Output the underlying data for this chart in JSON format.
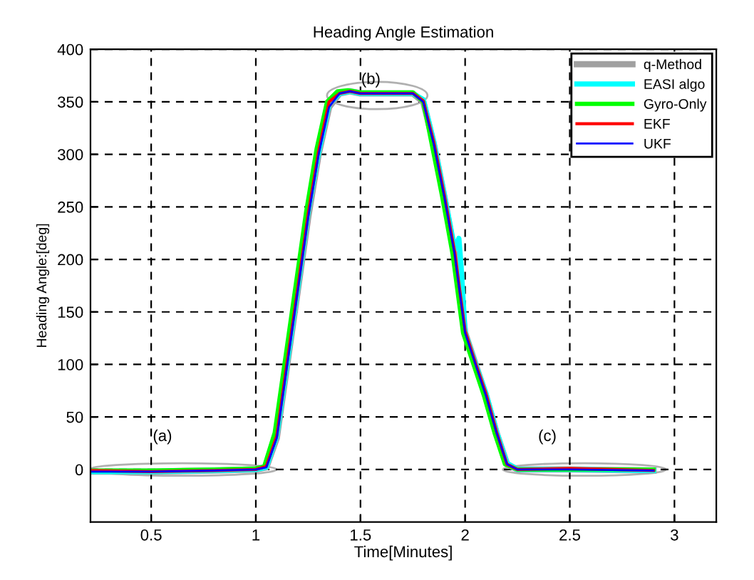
{
  "chart_data": {
    "type": "line",
    "title": "Heading Angle Estimation",
    "xlabel": "Time[Minutes]",
    "ylabel": "Heading Angle:[deg]",
    "xlim": [
      0.21,
      3.2
    ],
    "ylim": [
      -50,
      400
    ],
    "xticks": [
      0.5,
      1,
      1.5,
      2,
      2.5,
      3
    ],
    "yticks": [
      0,
      50,
      100,
      150,
      200,
      250,
      300,
      350,
      400
    ],
    "grid": true,
    "legend": "top right",
    "line_style": "solid",
    "marker": "none",
    "annotations": [
      "(a)",
      "(b)",
      "(c)"
    ],
    "series": [
      {
        "name": "q-Method",
        "color": "#a0a0a0",
        "x": [
          0.21,
          0.5,
          0.8,
          1.0,
          1.05,
          1.1,
          1.15,
          1.2,
          1.25,
          1.3,
          1.35,
          1.4,
          1.45,
          1.5,
          1.6,
          1.75,
          1.8,
          1.85,
          1.9,
          1.95,
          2.0,
          2.05,
          2.1,
          2.15,
          2.2,
          2.25,
          2.5,
          2.9
        ],
        "values": [
          -2,
          -2,
          -1,
          0,
          2,
          30,
          100,
          170,
          240,
          300,
          345,
          358,
          360,
          358,
          358,
          358,
          350,
          310,
          260,
          205,
          130,
          100,
          70,
          35,
          5,
          0,
          0,
          -1
        ]
      },
      {
        "name": "EASI algo",
        "color": "#00ffff",
        "x": [
          0.21,
          0.5,
          0.8,
          1.0,
          1.05,
          1.1,
          1.15,
          1.2,
          1.25,
          1.3,
          1.35,
          1.4,
          1.45,
          1.5,
          1.6,
          1.75,
          1.8,
          1.85,
          1.9,
          1.95,
          1.97,
          1.98,
          2.0,
          2.05,
          2.1,
          2.15,
          2.2,
          2.25,
          2.5,
          2.9
        ],
        "values": [
          -2,
          -2,
          -1,
          0,
          2,
          32,
          102,
          172,
          245,
          302,
          348,
          358,
          360,
          358,
          358,
          358,
          352,
          312,
          262,
          210,
          220,
          195,
          130,
          100,
          72,
          36,
          6,
          0,
          0,
          -1
        ]
      },
      {
        "name": "Gyro-Only",
        "color": "#00ff00",
        "x": [
          0.21,
          0.5,
          0.8,
          1.0,
          1.04,
          1.09,
          1.14,
          1.19,
          1.24,
          1.29,
          1.34,
          1.39,
          1.44,
          1.5,
          1.6,
          1.75,
          1.8,
          1.84,
          1.89,
          1.94,
          1.99,
          2.04,
          2.09,
          2.14,
          2.19,
          2.25,
          2.5,
          2.9
        ],
        "values": [
          -1,
          -1,
          0,
          1,
          3,
          35,
          105,
          175,
          245,
          305,
          350,
          360,
          361,
          359,
          359,
          359,
          350,
          310,
          260,
          205,
          130,
          100,
          70,
          35,
          5,
          0,
          0,
          0
        ]
      },
      {
        "name": "EKF",
        "color": "#ff0000",
        "x": [
          0.21,
          0.5,
          0.8,
          1.0,
          1.05,
          1.1,
          1.15,
          1.2,
          1.25,
          1.3,
          1.35,
          1.4,
          1.45,
          1.5,
          1.6,
          1.75,
          1.8,
          1.85,
          1.9,
          1.95,
          2.0,
          2.05,
          2.1,
          2.15,
          2.2,
          2.25,
          2.5,
          2.9
        ],
        "values": [
          -1,
          -2,
          -1,
          0,
          3,
          32,
          103,
          172,
          243,
          303,
          350,
          358,
          360,
          358,
          358,
          358,
          351,
          312,
          262,
          207,
          132,
          101,
          72,
          36,
          5,
          0,
          1,
          -1
        ]
      },
      {
        "name": "UKF",
        "color": "#0000ff",
        "x": [
          0.21,
          0.5,
          0.8,
          1.0,
          1.05,
          1.1,
          1.15,
          1.2,
          1.25,
          1.3,
          1.35,
          1.4,
          1.45,
          1.5,
          1.6,
          1.75,
          1.8,
          1.85,
          1.9,
          1.95,
          2.0,
          2.05,
          2.1,
          2.15,
          2.2,
          2.25,
          2.5,
          2.9
        ],
        "values": [
          -2,
          -2,
          -1,
          0,
          2,
          30,
          100,
          170,
          240,
          300,
          345,
          358,
          360,
          358,
          358,
          358,
          350,
          310,
          260,
          205,
          130,
          100,
          70,
          35,
          5,
          0,
          0,
          -1
        ]
      }
    ]
  }
}
